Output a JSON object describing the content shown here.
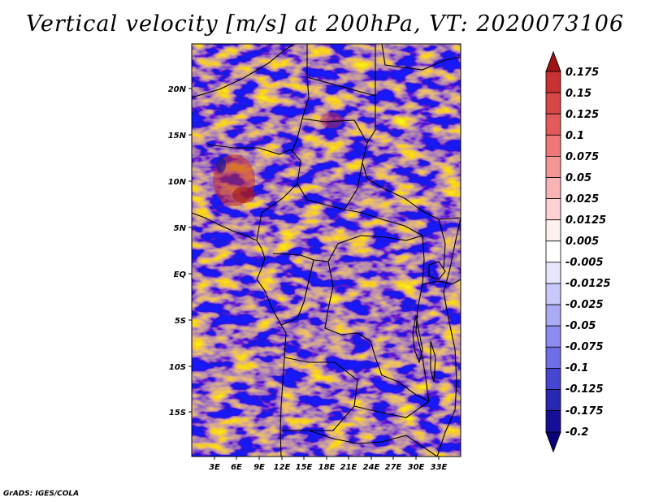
{
  "title": "Vertical velocity [m/s] at 200hPa, VT: 2020073106",
  "footer": "GrADS: IGES/COLA",
  "map": {
    "lon_range": [
      0,
      36
    ],
    "lat_range": [
      -20,
      25
    ],
    "lat_ticks": [
      "20N",
      "15N",
      "10N",
      "5N",
      "EQ",
      "5S",
      "10S",
      "15S"
    ],
    "lon_ticks": [
      "3E",
      "6E",
      "9E",
      "12E",
      "15E",
      "18E",
      "21E",
      "24E",
      "27E",
      "30E",
      "33E"
    ],
    "coastline_color": "#000000"
  },
  "colorbar": {
    "labels": [
      "0.175",
      "0.15",
      "0.125",
      "0.1",
      "0.075",
      "0.05",
      "0.025",
      "0.0125",
      "0.005",
      "-0.005",
      "-0.0125",
      "-0.025",
      "-0.05",
      "-0.075",
      "-0.1",
      "-0.125",
      "-0.175",
      "-0.2"
    ],
    "colors": [
      "#b41e1e",
      "#c83232",
      "#d84646",
      "#e45a5a",
      "#ee7878",
      "#f49696",
      "#f8b4b4",
      "#fcd2d2",
      "#fff0f0",
      "#ffffff",
      "#e6e6ff",
      "#c8c8fa",
      "#aaaaf5",
      "#8c8cf0",
      "#6e6ee6",
      "#4646d2",
      "#2828b4",
      "#140f96",
      "#0a0078"
    ]
  }
}
